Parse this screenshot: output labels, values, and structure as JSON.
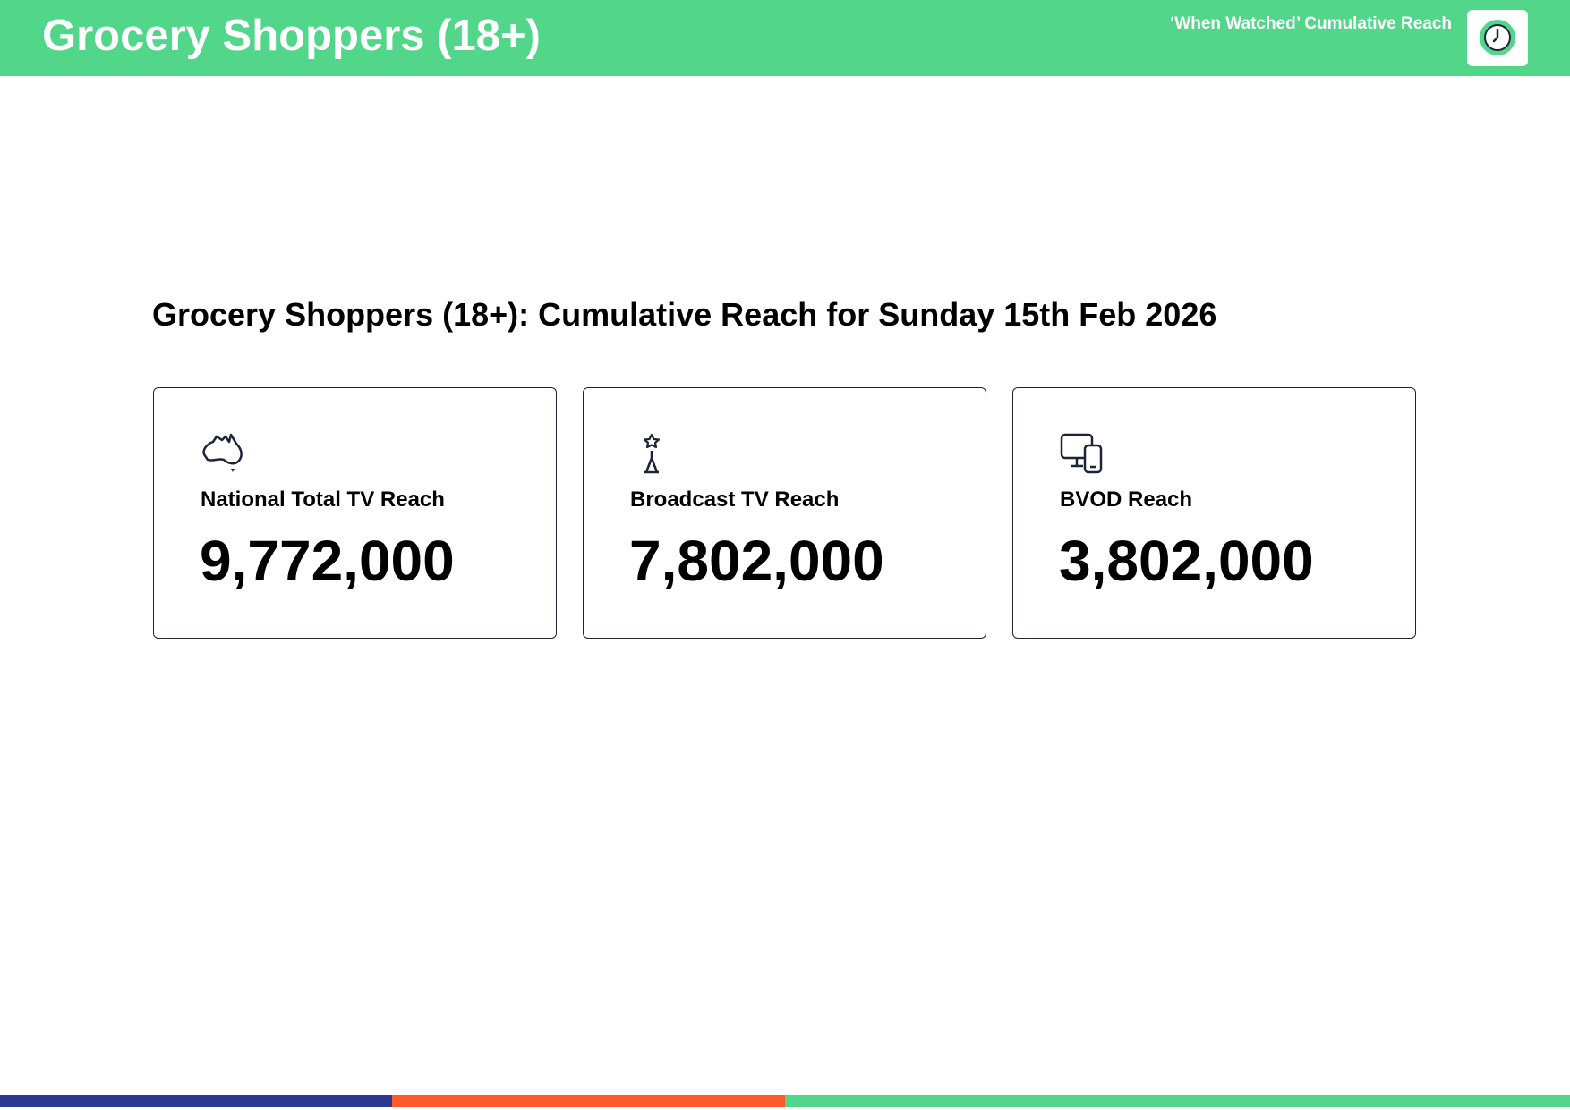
{
  "header": {
    "title": "Grocery Shoppers (18+)",
    "subtitle": "‘When Watched’ Cumulative Reach"
  },
  "heading": "Grocery Shoppers (18+): Cumulative Reach for Sunday 15th Feb 2026",
  "cards": [
    {
      "label": "National Total TV Reach",
      "value": "9,772,000"
    },
    {
      "label": "Broadcast TV Reach",
      "value": "7,802,000"
    },
    {
      "label": "BVOD Reach",
      "value": "3,802,000"
    }
  ]
}
